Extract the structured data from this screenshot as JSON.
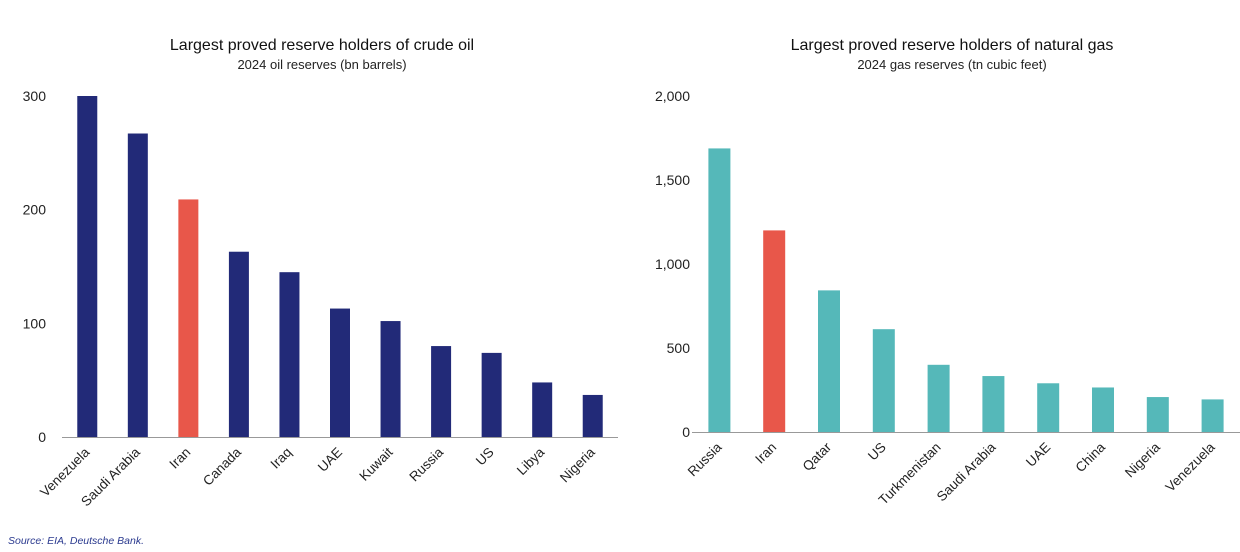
{
  "source": "Source: EIA, Deutsche Bank.",
  "colors": {
    "default": "#222a78",
    "highlight": "#e8574a",
    "gas": "#55b8b9",
    "axis": "#999999"
  },
  "chart_data": [
    {
      "type": "bar",
      "title": "Largest proved reserve holders of crude oil",
      "subtitle": "2024 oil reserves (bn barrels)",
      "categories": [
        "Venezuela",
        "Saudi Arabia",
        "Iran",
        "Canada",
        "Iraq",
        "UAE",
        "Kuwait",
        "Russia",
        "US",
        "Libya",
        "Nigeria"
      ],
      "values": [
        300,
        267,
        209,
        163,
        145,
        113,
        102,
        80,
        74,
        48,
        37
      ],
      "highlight": "Iran",
      "ylim": [
        0,
        300
      ],
      "yticks": [
        0,
        100,
        200,
        300
      ],
      "ytick_labels": [
        "0",
        "100",
        "200",
        "300"
      ],
      "xlabel": "",
      "ylabel": "",
      "grid": false
    },
    {
      "type": "bar",
      "title": "Largest proved reserve holders of natural gas",
      "subtitle": "2024 gas reserves (tn cubic feet)",
      "categories": [
        "Russia",
        "Iran",
        "Qatar",
        "US",
        "Turkmenistan",
        "Saudi Arabia",
        "UAE",
        "China",
        "Nigeria",
        "Venezuela"
      ],
      "values": [
        1688,
        1200,
        843,
        612,
        400,
        333,
        290,
        265,
        208,
        194
      ],
      "highlight": "Iran",
      "ylim": [
        0,
        2000
      ],
      "yticks": [
        0,
        500,
        1000,
        1500,
        2000
      ],
      "ytick_labels": [
        "0",
        "500",
        "1,000",
        "1,500",
        "2,000"
      ],
      "xlabel": "",
      "ylabel": "",
      "grid": false
    }
  ]
}
